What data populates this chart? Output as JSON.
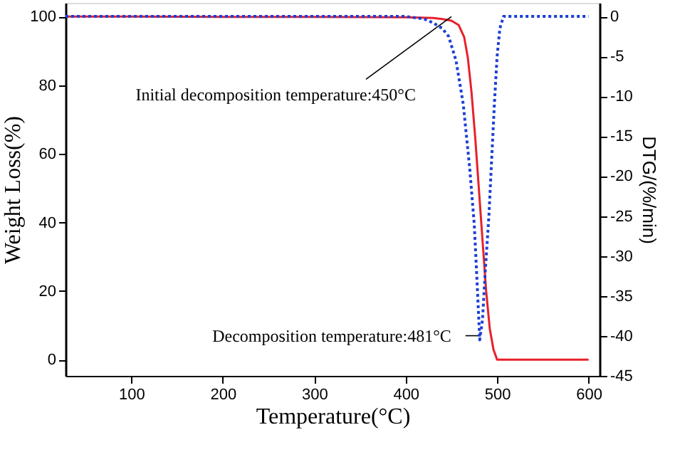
{
  "chart_data": {
    "type": "line",
    "xlabel": "Temperature(°C)",
    "ylabel": "Weight Loss(%)",
    "y2label": "DTG/(%/min)",
    "xlim": [
      28,
      612
    ],
    "xticks": [
      100,
      200,
      300,
      400,
      500,
      600
    ],
    "ylim": [
      -4.7,
      104
    ],
    "yticks": [
      0,
      20,
      40,
      60,
      80,
      100
    ],
    "y2lim": [
      -45,
      1.7
    ],
    "y2ticks": [
      0,
      -5,
      -10,
      -15,
      -20,
      -25,
      -30,
      -35,
      -40,
      -45
    ],
    "grid": false,
    "series": [
      {
        "color": "#e8202a",
        "line_style": "solid",
        "x": [
          28,
          100,
          200,
          300,
          400,
          430,
          440,
          450,
          458,
          464,
          468,
          472,
          476,
          480,
          484,
          488,
          492,
          496,
          500,
          520,
          560,
          600
        ],
        "values": [
          100,
          100,
          99.9,
          99.9,
          99.8,
          99.6,
          99.3,
          98.8,
          97.5,
          94,
          88,
          78,
          65,
          50,
          35,
          20,
          9,
          3,
          0,
          0,
          0,
          0
        ]
      },
      {
        "color": "#1c3fd6",
        "line_style": "dotted",
        "axis": "y2",
        "x": [
          28,
          100,
          200,
          300,
          400,
          420,
          430,
          440,
          447,
          455,
          463,
          470,
          475,
          478,
          481,
          484,
          487,
          491,
          494,
          497,
          500,
          503,
          507,
          520,
          560,
          600
        ],
        "values": [
          0,
          0,
          0,
          0,
          0,
          -0.3,
          -0.8,
          -1.5,
          -2.5,
          -5.5,
          -11,
          -19,
          -26,
          -33,
          -40.5,
          -38,
          -32,
          -25,
          -18,
          -11,
          -5,
          -1.5,
          0,
          0,
          0,
          0
        ]
      }
    ],
    "annotations": [
      {
        "text": "Initial decomposition temperature:450°C",
        "x": 450,
        "y": 100
      },
      {
        "text": "Decomposition temperature:481°C",
        "x": 481,
        "y": 7
      }
    ]
  }
}
